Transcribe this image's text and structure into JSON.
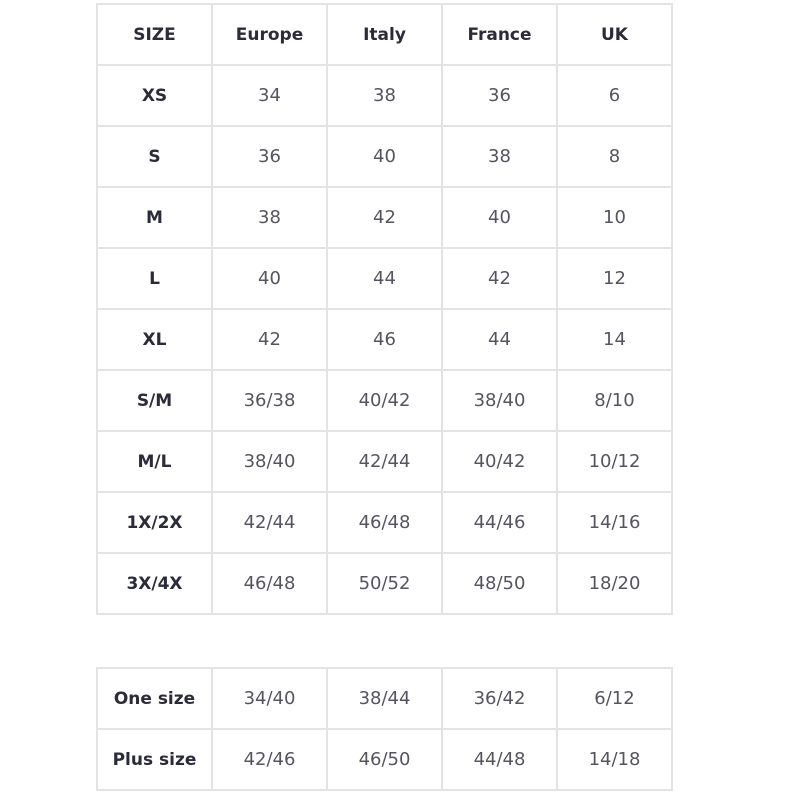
{
  "main_table": {
    "headers": [
      "SIZE",
      "Europe",
      "Italy",
      "France",
      "UK"
    ],
    "rows": [
      [
        "XS",
        "34",
        "38",
        "36",
        "6"
      ],
      [
        "S",
        "36",
        "40",
        "38",
        "8"
      ],
      [
        "M",
        "38",
        "42",
        "40",
        "10"
      ],
      [
        "L",
        "40",
        "44",
        "42",
        "12"
      ],
      [
        "XL",
        "42",
        "46",
        "44",
        "14"
      ],
      [
        "S/M",
        "36/38",
        "40/42",
        "38/40",
        "8/10"
      ],
      [
        "M/L",
        "38/40",
        "42/44",
        "40/42",
        "10/12"
      ],
      [
        "1X/2X",
        "42/44",
        "46/48",
        "44/46",
        "14/16"
      ],
      [
        "3X/4X",
        "46/48",
        "50/52",
        "48/50",
        "18/20"
      ]
    ]
  },
  "extra_table": {
    "rows": [
      [
        "One size",
        "34/40",
        "38/44",
        "36/42",
        "6/12"
      ],
      [
        "Plus size",
        "42/46",
        "46/50",
        "44/48",
        "14/18"
      ]
    ]
  },
  "colors": {
    "border": "#e3e3e3",
    "header_text": "#2b2b3a",
    "body_text": "#555560"
  }
}
